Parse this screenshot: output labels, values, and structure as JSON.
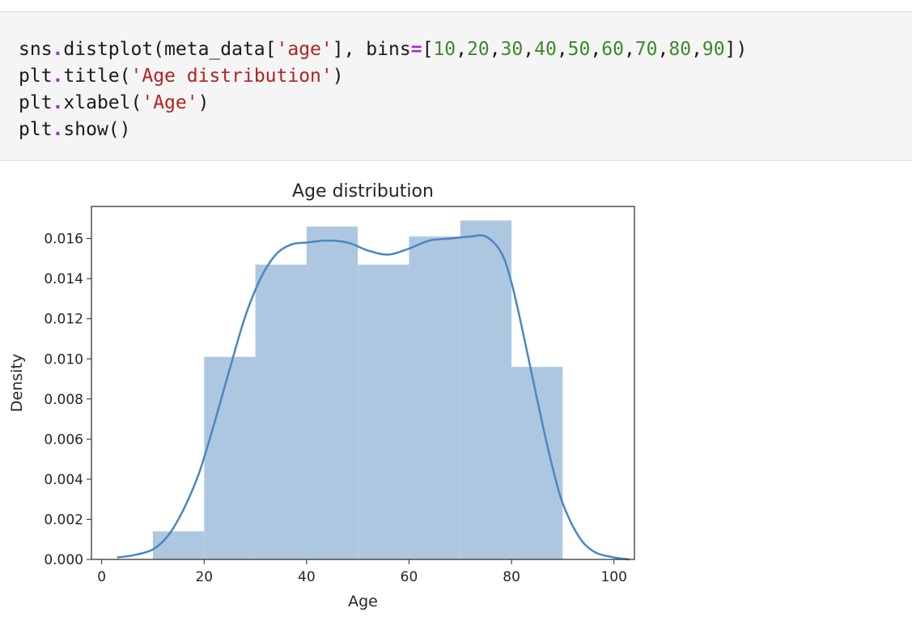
{
  "code_cell": {
    "lines": [
      [
        {
          "t": "sns",
          "c": "pun"
        },
        {
          "t": ".",
          "c": "op"
        },
        {
          "t": "distplot(meta_data[",
          "c": "pun"
        },
        {
          "t": "'age'",
          "c": "str"
        },
        {
          "t": "], bins",
          "c": "pun"
        },
        {
          "t": "=",
          "c": "op"
        },
        {
          "t": "[",
          "c": "pun"
        },
        {
          "t": "10",
          "c": "num"
        },
        {
          "t": ",",
          "c": "pun"
        },
        {
          "t": "20",
          "c": "num"
        },
        {
          "t": ",",
          "c": "pun"
        },
        {
          "t": "30",
          "c": "num"
        },
        {
          "t": ",",
          "c": "pun"
        },
        {
          "t": "40",
          "c": "num"
        },
        {
          "t": ",",
          "c": "pun"
        },
        {
          "t": "50",
          "c": "num"
        },
        {
          "t": ",",
          "c": "pun"
        },
        {
          "t": "60",
          "c": "num"
        },
        {
          "t": ",",
          "c": "pun"
        },
        {
          "t": "70",
          "c": "num"
        },
        {
          "t": ",",
          "c": "pun"
        },
        {
          "t": "80",
          "c": "num"
        },
        {
          "t": ",",
          "c": "pun"
        },
        {
          "t": "90",
          "c": "num"
        },
        {
          "t": "])",
          "c": "pun"
        }
      ],
      [
        {
          "t": "plt",
          "c": "pun"
        },
        {
          "t": ".",
          "c": "op"
        },
        {
          "t": "title(",
          "c": "pun"
        },
        {
          "t": "'Age distribution'",
          "c": "str"
        },
        {
          "t": ")",
          "c": "pun"
        }
      ],
      [
        {
          "t": "plt",
          "c": "pun"
        },
        {
          "t": ".",
          "c": "op"
        },
        {
          "t": "xlabel(",
          "c": "pun"
        },
        {
          "t": "'Age'",
          "c": "str"
        },
        {
          "t": ")",
          "c": "pun"
        }
      ],
      [
        {
          "t": "plt",
          "c": "pun"
        },
        {
          "t": ".",
          "c": "op"
        },
        {
          "t": "show()",
          "c": "pun"
        }
      ]
    ]
  },
  "colors": {
    "bar_fill": "#aec7e1",
    "kde_line": "#4c86c0",
    "axis": "#262626",
    "code_bg": "#f5f5f5"
  },
  "chart_data": {
    "type": "bar",
    "title": "Age distribution",
    "xlabel": "Age",
    "ylabel": "Density",
    "xlim": [
      -2,
      104
    ],
    "ylim": [
      0,
      0.0176
    ],
    "xticks": [
      0,
      20,
      40,
      60,
      80,
      100
    ],
    "yticks": [
      0.0,
      0.002,
      0.004,
      0.006,
      0.008,
      0.01,
      0.012,
      0.014,
      0.016
    ],
    "ytick_labels": [
      "0.000",
      "0.002",
      "0.004",
      "0.006",
      "0.008",
      "0.010",
      "0.012",
      "0.014",
      "0.016"
    ],
    "bins": [
      {
        "x0": 10,
        "x1": 20,
        "density": 0.0014
      },
      {
        "x0": 20,
        "x1": 30,
        "density": 0.0101
      },
      {
        "x0": 30,
        "x1": 40,
        "density": 0.0147
      },
      {
        "x0": 40,
        "x1": 50,
        "density": 0.0166
      },
      {
        "x0": 50,
        "x1": 60,
        "density": 0.0147
      },
      {
        "x0": 60,
        "x1": 70,
        "density": 0.0161
      },
      {
        "x0": 70,
        "x1": 80,
        "density": 0.0169
      },
      {
        "x0": 80,
        "x1": 90,
        "density": 0.0096
      }
    ],
    "kde": {
      "x": [
        3,
        6,
        10,
        13,
        16,
        19,
        22,
        25,
        28,
        31,
        34,
        37,
        40,
        44,
        48,
        52,
        56,
        60,
        64,
        68,
        72,
        75,
        78,
        80,
        82,
        84,
        86,
        88,
        90,
        93,
        96,
        100,
        103
      ],
      "y": [
        0.0001,
        0.0002,
        0.0005,
        0.0012,
        0.0025,
        0.0043,
        0.0068,
        0.0095,
        0.0121,
        0.014,
        0.0152,
        0.0157,
        0.0158,
        0.0159,
        0.0158,
        0.0154,
        0.0152,
        0.0155,
        0.0159,
        0.016,
        0.0161,
        0.0161,
        0.0153,
        0.0138,
        0.0116,
        0.0092,
        0.0068,
        0.0046,
        0.0028,
        0.0012,
        0.0004,
        0.0001,
        0.0
      ]
    },
    "grid": false,
    "legend": "none"
  }
}
